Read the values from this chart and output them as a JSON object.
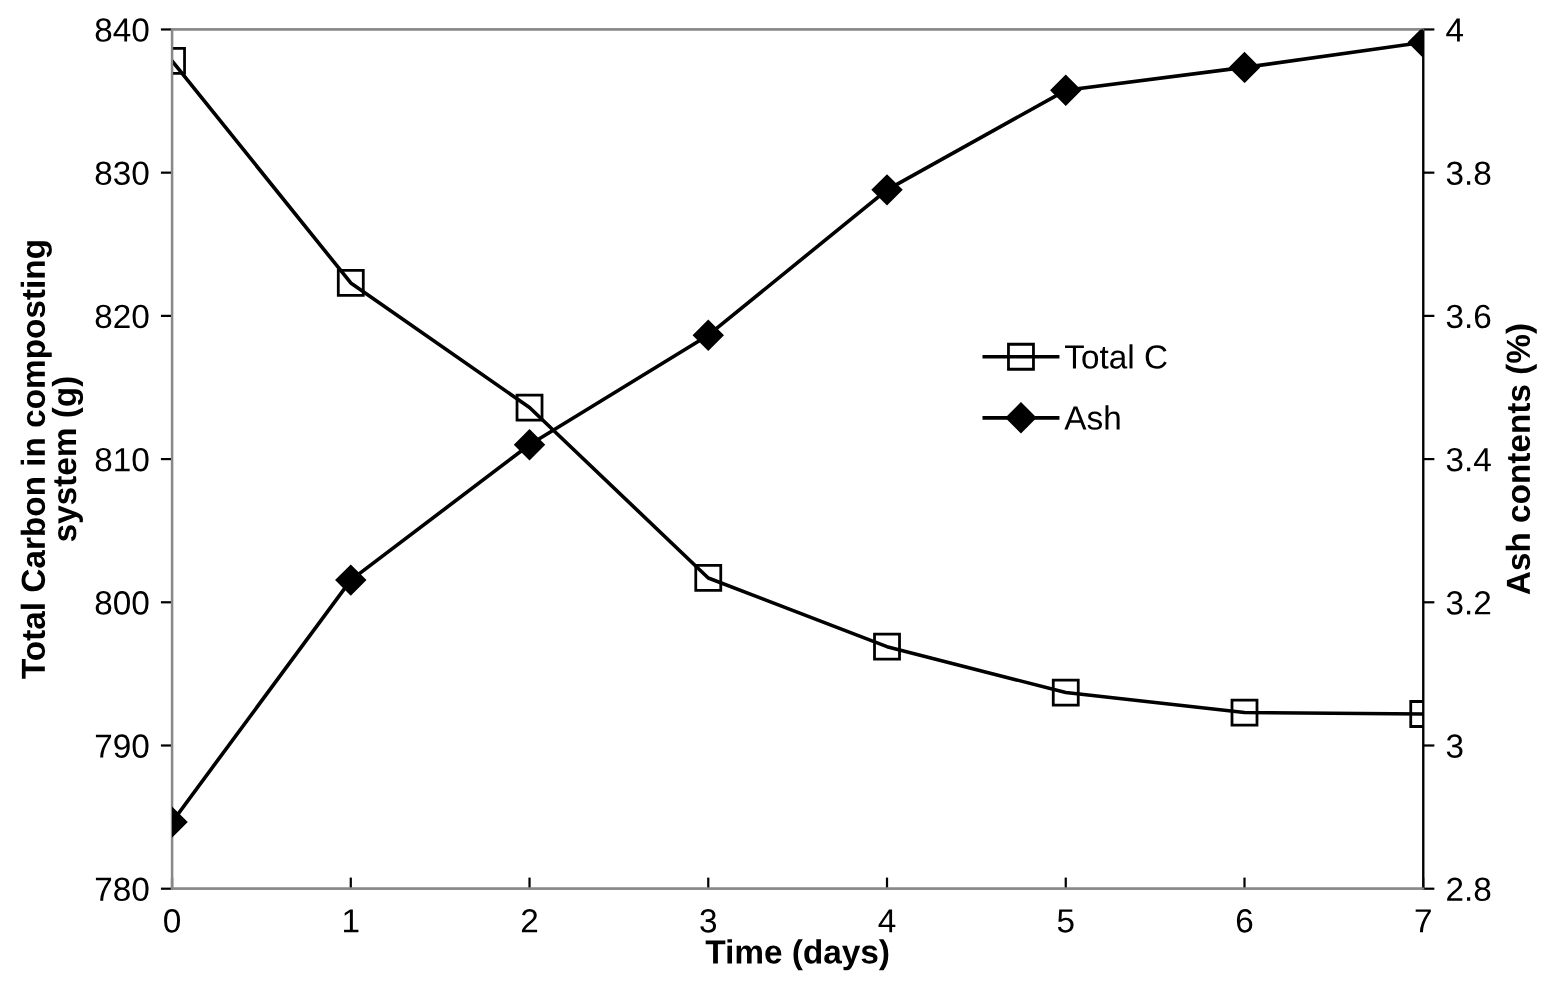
{
  "chart_data": {
    "type": "line",
    "xlabel": "Time (days)",
    "ylabel": "Total Carbon in composting\nsystem (g)",
    "y2label": "Ash contents (%)",
    "x": [
      0,
      1,
      2,
      3,
      4,
      5,
      6,
      7
    ],
    "series": [
      {
        "name": "Total C",
        "color": "#000000",
        "marker": "square",
        "values": [
          837.8,
          822.3,
          813.6,
          801.7,
          796.9,
          793.7,
          792.3,
          792.2
        ]
      },
      {
        "name": "Ash",
        "color": "#000000",
        "marker": "diamond",
        "axis": "y2",
        "values": [
          2.893,
          3.231,
          3.42,
          3.573,
          3.776,
          3.915,
          3.947,
          3.982
        ]
      }
    ],
    "xlim": [
      0,
      7
    ],
    "xticks": [
      0,
      1,
      2,
      3,
      4,
      5,
      6,
      7
    ],
    "ylim": [
      780,
      840
    ],
    "yticks": [
      780,
      790,
      800,
      810,
      820,
      830,
      840
    ],
    "y2lim": [
      2.8,
      4
    ],
    "y2ticks": [
      {
        "value": 2.8,
        "label": "2.8"
      },
      {
        "value": 3,
        "label": "3"
      },
      {
        "value": 3.2,
        "label": "3.2"
      },
      {
        "value": 3.4,
        "label": "3.4"
      },
      {
        "value": 3.6,
        "label": "3.6"
      },
      {
        "value": 3.8,
        "label": "3.8"
      },
      {
        "value": 4,
        "label": "4"
      }
    ],
    "legend": "right",
    "line_style": "solid"
  }
}
